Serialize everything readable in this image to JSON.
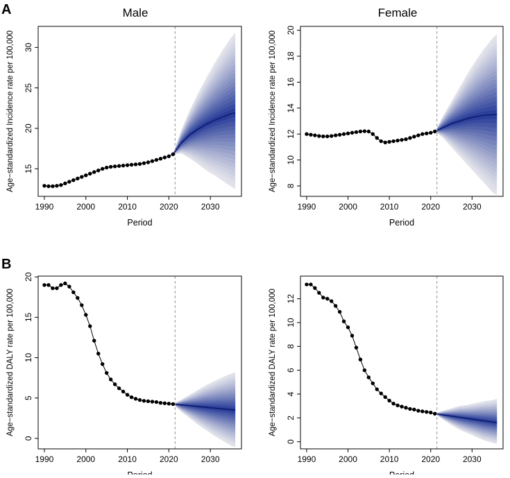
{
  "panel_labels": {
    "A": "A",
    "B": "B"
  },
  "column_titles": {
    "male": "Male",
    "female": "Female"
  },
  "chart_data": [
    {
      "id": "incidence-male",
      "type": "line",
      "title": "",
      "xlabel": "Period",
      "ylabel": "Age−standardized Incidence rate per 100,000",
      "xlim": [
        1988.5,
        2037.5
      ],
      "ylim": [
        11.6,
        32.6
      ],
      "xticks": [
        1990,
        2000,
        2010,
        2020,
        2030
      ],
      "yticks": [
        15,
        20,
        25,
        30
      ],
      "forecast_start": 2021.5,
      "observed": {
        "x": [
          1990,
          1991,
          1992,
          1993,
          1994,
          1995,
          1996,
          1997,
          1998,
          1999,
          2000,
          2001,
          2002,
          2003,
          2004,
          2005,
          2006,
          2007,
          2008,
          2009,
          2010,
          2011,
          2012,
          2013,
          2014,
          2015,
          2016,
          2017,
          2018,
          2019,
          2020,
          2021
        ],
        "y": [
          12.9,
          12.85,
          12.85,
          12.9,
          13.0,
          13.2,
          13.4,
          13.6,
          13.8,
          14.0,
          14.2,
          14.4,
          14.6,
          14.8,
          15.0,
          15.15,
          15.25,
          15.3,
          15.35,
          15.4,
          15.45,
          15.5,
          15.55,
          15.6,
          15.7,
          15.8,
          15.95,
          16.1,
          16.25,
          16.4,
          16.55,
          16.8
        ]
      },
      "forecast": {
        "x": [
          2021,
          2023,
          2025,
          2027,
          2029,
          2031,
          2033,
          2035,
          2036
        ],
        "mean": [
          16.8,
          18.2,
          19.2,
          19.9,
          20.5,
          21.0,
          21.4,
          21.8,
          21.9
        ],
        "upper": [
          16.8,
          19.8,
          22.2,
          24.3,
          26.2,
          28.0,
          29.7,
          31.2,
          31.8
        ],
        "lower": [
          16.8,
          16.9,
          16.3,
          15.6,
          14.8,
          14.2,
          13.5,
          12.8,
          12.5
        ]
      }
    },
    {
      "id": "incidence-female",
      "type": "line",
      "title": "",
      "xlabel": "Period",
      "ylabel": "Age−standardized Incidence rate per 100,000",
      "xlim": [
        1988.5,
        2037.5
      ],
      "ylim": [
        7.2,
        20.3
      ],
      "xticks": [
        1990,
        2000,
        2010,
        2020,
        2030
      ],
      "yticks": [
        8,
        10,
        12,
        14,
        16,
        18,
        20
      ],
      "forecast_start": 2021.5,
      "observed": {
        "x": [
          1990,
          1991,
          1992,
          1993,
          1994,
          1995,
          1996,
          1997,
          1998,
          1999,
          2000,
          2001,
          2002,
          2003,
          2004,
          2005,
          2006,
          2007,
          2008,
          2009,
          2010,
          2011,
          2012,
          2013,
          2014,
          2015,
          2016,
          2017,
          2018,
          2019,
          2020,
          2021
        ],
        "y": [
          12.0,
          11.95,
          11.9,
          11.85,
          11.82,
          11.82,
          11.85,
          11.9,
          11.95,
          12.0,
          12.05,
          12.1,
          12.15,
          12.2,
          12.22,
          12.2,
          12.0,
          11.7,
          11.45,
          11.35,
          11.4,
          11.45,
          11.5,
          11.55,
          11.6,
          11.7,
          11.8,
          11.9,
          12.0,
          12.05,
          12.1,
          12.2
        ]
      },
      "forecast": {
        "x": [
          2021,
          2023,
          2025,
          2027,
          2029,
          2031,
          2033,
          2035,
          2036
        ],
        "mean": [
          12.2,
          12.5,
          12.8,
          13.0,
          13.2,
          13.35,
          13.45,
          13.5,
          13.5
        ],
        "upper": [
          12.2,
          13.4,
          14.5,
          15.6,
          16.7,
          17.7,
          18.6,
          19.4,
          19.7
        ],
        "lower": [
          12.2,
          11.7,
          11.0,
          10.3,
          9.6,
          8.9,
          8.2,
          7.5,
          7.3
        ]
      }
    },
    {
      "id": "daly-male",
      "type": "line",
      "title": "",
      "xlabel": "Period",
      "ylabel": "Age−standardized DALY rate per 100,000",
      "xlim": [
        1988.5,
        2037.5
      ],
      "ylim": [
        -1.3,
        20.1
      ],
      "xticks": [
        1990,
        2000,
        2010,
        2020,
        2030
      ],
      "yticks": [
        0,
        5,
        10,
        15,
        20
      ],
      "forecast_start": 2021.5,
      "observed": {
        "x": [
          1990,
          1991,
          1992,
          1993,
          1994,
          1995,
          1996,
          1997,
          1998,
          1999,
          2000,
          2001,
          2002,
          2003,
          2004,
          2005,
          2006,
          2007,
          2008,
          2009,
          2010,
          2011,
          2012,
          2013,
          2014,
          2015,
          2016,
          2017,
          2018,
          2019,
          2020,
          2021
        ],
        "y": [
          19.0,
          19.0,
          18.6,
          18.6,
          19.0,
          19.2,
          18.8,
          18.1,
          17.4,
          16.5,
          15.3,
          13.9,
          12.1,
          10.5,
          9.2,
          8.1,
          7.3,
          6.7,
          6.2,
          5.8,
          5.4,
          5.1,
          4.9,
          4.75,
          4.65,
          4.6,
          4.55,
          4.5,
          4.4,
          4.35,
          4.3,
          4.25
        ]
      },
      "forecast": {
        "x": [
          2021,
          2023,
          2025,
          2027,
          2029,
          2031,
          2033,
          2035,
          2036
        ],
        "mean": [
          4.25,
          4.15,
          4.05,
          3.95,
          3.85,
          3.75,
          3.65,
          3.55,
          3.5
        ],
        "upper": [
          4.25,
          4.8,
          5.4,
          6.0,
          6.6,
          7.1,
          7.6,
          8.0,
          8.2
        ],
        "lower": [
          4.25,
          3.3,
          2.5,
          1.7,
          1.0,
          0.3,
          -0.3,
          -0.9,
          -1.1
        ]
      }
    },
    {
      "id": "daly-female",
      "type": "line",
      "title": "",
      "xlabel": "Period",
      "ylabel": "Age−standardized DALY rate per 100,000",
      "xlim": [
        1988.5,
        2037.5
      ],
      "ylim": [
        -0.6,
        13.9
      ],
      "xticks": [
        1990,
        2000,
        2010,
        2020,
        2030
      ],
      "yticks": [
        0,
        2,
        4,
        6,
        8,
        10,
        12
      ],
      "forecast_start": 2021.5,
      "observed": {
        "x": [
          1990,
          1991,
          1992,
          1993,
          1994,
          1995,
          1996,
          1997,
          1998,
          1999,
          2000,
          2001,
          2002,
          2003,
          2004,
          2005,
          2006,
          2007,
          2008,
          2009,
          2010,
          2011,
          2012,
          2013,
          2014,
          2015,
          2016,
          2017,
          2018,
          2019,
          2020,
          2021
        ],
        "y": [
          13.2,
          13.2,
          12.9,
          12.5,
          12.1,
          12.0,
          11.8,
          11.4,
          10.9,
          10.1,
          9.6,
          8.9,
          7.9,
          6.9,
          6.0,
          5.4,
          4.9,
          4.4,
          4.05,
          3.75,
          3.45,
          3.2,
          3.05,
          2.95,
          2.85,
          2.75,
          2.7,
          2.6,
          2.55,
          2.5,
          2.45,
          2.35
        ]
      },
      "forecast": {
        "x": [
          2021,
          2023,
          2025,
          2027,
          2029,
          2031,
          2033,
          2035,
          2036
        ],
        "mean": [
          2.35,
          2.25,
          2.15,
          2.05,
          1.95,
          1.85,
          1.75,
          1.65,
          1.6
        ],
        "upper": [
          2.35,
          2.6,
          2.8,
          3.0,
          3.1,
          3.25,
          3.4,
          3.5,
          3.6
        ],
        "lower": [
          2.35,
          1.85,
          1.4,
          1.0,
          0.7,
          0.4,
          0.1,
          -0.1,
          -0.2
        ]
      }
    }
  ],
  "colors": {
    "fan_outer": "#e2e3ea",
    "fan_inner": "#2b3f9a",
    "mean_line": "#0d1b6e",
    "points": "#000000",
    "vline": "#a6a6a6",
    "axis": "#000000"
  }
}
